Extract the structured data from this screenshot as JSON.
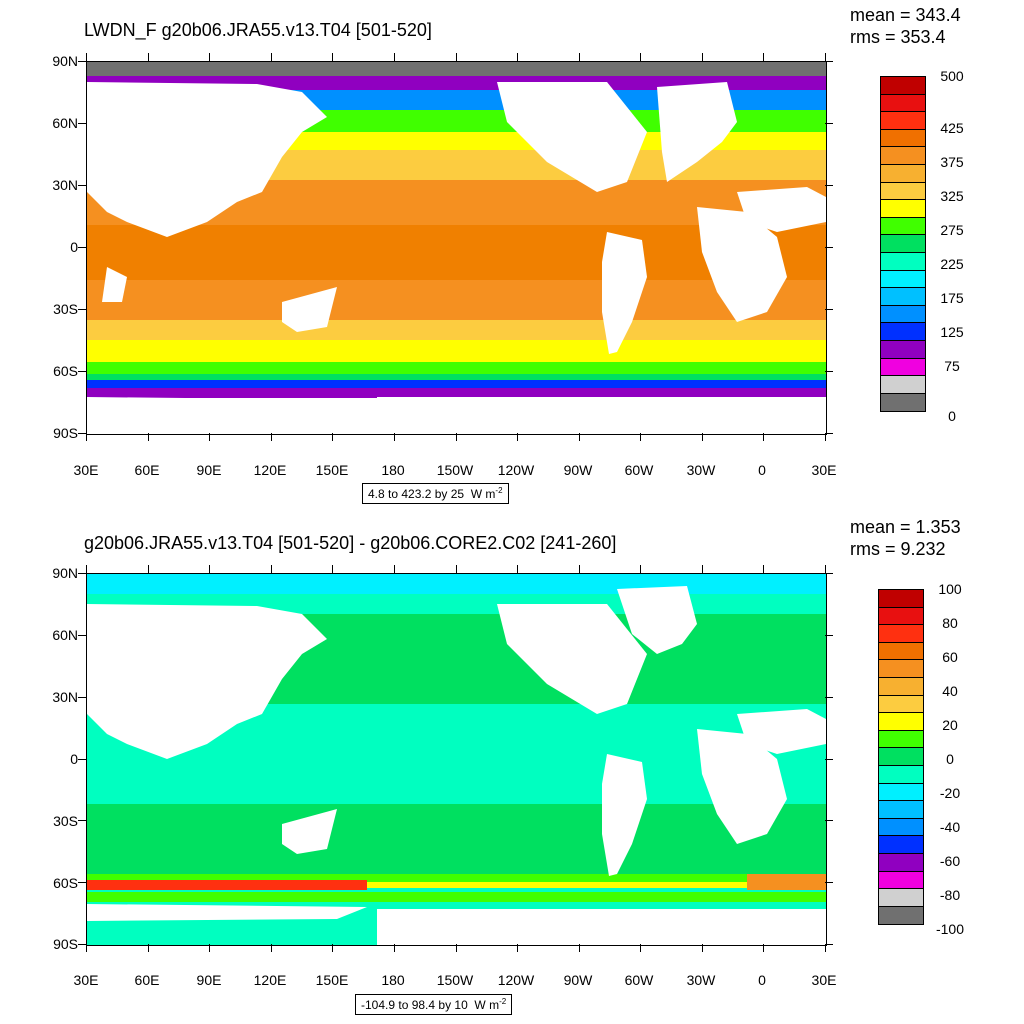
{
  "panel_top": {
    "title": "LWDN_F g20b06.JRA55.v13.T04 [501-520]",
    "mean": "mean = 343.4",
    "rms": "rms = 353.4",
    "info_text": "4.8 to 423.2 by 25",
    "info_units": "W m",
    "info_exp": "-2",
    "colorbar_labels": [
      "500",
      "425",
      "375",
      "325",
      "275",
      "225",
      "175",
      "125",
      "75",
      "0"
    ],
    "colorbar_colors": [
      "#c00000",
      "#e81010",
      "#ff3010",
      "#f07000",
      "#f59020",
      "#f7b030",
      "#fccc40",
      "#ffff00",
      "#40ff00",
      "#00e060",
      "#00ffc0",
      "#00f0ff",
      "#00c0ff",
      "#0090ff",
      "#0030ff",
      "#9000c0",
      "#f000e0",
      "#d0d0d0",
      "#707070"
    ]
  },
  "panel_bottom": {
    "title": "g20b06.JRA55.v13.T04 [501-520] - g20b06.CORE2.C02 [241-260]",
    "mean": "mean = 1.353",
    "rms": "rms = 9.232",
    "info_text": "-104.9 to 98.4 by 10",
    "info_units": "W m",
    "info_exp": "-2",
    "colorbar_labels": [
      "100",
      "80",
      "60",
      "40",
      "20",
      "0",
      "-20",
      "-40",
      "-60",
      "-80",
      "-100"
    ],
    "colorbar_colors": [
      "#c00000",
      "#e81010",
      "#ff3010",
      "#f07000",
      "#f59020",
      "#f7b030",
      "#fccc40",
      "#ffff00",
      "#40ff00",
      "#00e060",
      "#00ffc0",
      "#00f0ff",
      "#00c0ff",
      "#0090ff",
      "#0030ff",
      "#9000c0",
      "#f000e0",
      "#d0d0d0",
      "#707070"
    ]
  },
  "axes": {
    "lat_labels": [
      "90N",
      "60N",
      "30N",
      "0",
      "30S",
      "60S",
      "90S"
    ],
    "lon_labels": [
      "30E",
      "60E",
      "90E",
      "120E",
      "150E",
      "180",
      "150W",
      "120W",
      "90W",
      "60W",
      "30W",
      "0",
      "30E"
    ]
  }
}
